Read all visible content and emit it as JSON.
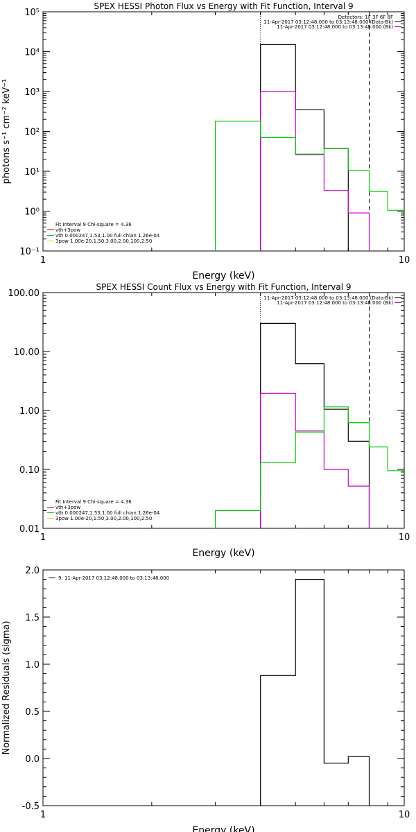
{
  "chart_data": [
    {
      "type": "line",
      "title": "SPEX HESSI Photon Flux vs Energy with Fit Function, Interval 9",
      "xlabel": "Energy (keV)",
      "ylabel": "photons s⁻¹ cm⁻² keV⁻¹",
      "xscale": "log",
      "yscale": "log",
      "xlim": [
        1,
        10
      ],
      "ylim": [
        0.1,
        100000
      ],
      "xticks": [
        {
          "v": 1,
          "label": "1"
        },
        {
          "v": 10,
          "label": "10"
        }
      ],
      "yticks": [
        {
          "v": 0.1,
          "label": "10⁻¹"
        },
        {
          "v": 1,
          "label": "10⁰"
        },
        {
          "v": 10,
          "label": "10¹"
        },
        {
          "v": 100,
          "label": "10²"
        },
        {
          "v": 1000,
          "label": "10³"
        },
        {
          "v": 10000,
          "label": "10⁴"
        },
        {
          "v": 100000,
          "label": "10⁵"
        }
      ],
      "vlines": [
        {
          "x": 4.0,
          "style": "dotted"
        },
        {
          "x": 8.0,
          "style": "dashed"
        }
      ],
      "legend_top_right": {
        "lines": [
          {
            "text": "Detectors: 1F 3F 6F 8F",
            "color": "#000000"
          },
          {
            "text": "11-Apr-2017 03:12:48.000 to 03:13:48.000 (Data-Bk)",
            "color": "#000000"
          },
          {
            "text": "11-Apr-2017 03:12:48.000 to 03:13:48.000 (Bk)",
            "color": "#cc00cc"
          }
        ]
      },
      "legend_bottom_left": {
        "lines": [
          {
            "text": "Fit Interval  9    Chi-square = 4.36",
            "color": "#000000"
          },
          {
            "text": "vth+3pow",
            "color": "#cc0000"
          },
          {
            "text": "vth 0.000247,1.53,1.00  full chian 1.26e-04",
            "color": "#00cc00"
          },
          {
            "text": "3pow 1.00e-20,1.50,3.00,2.00,100,2.50",
            "color": "#ffcc00"
          }
        ]
      },
      "series": [
        {
          "color": "#000000",
          "edges": [
            4,
            5,
            6,
            7
          ],
          "values": [
            15000,
            350,
            37
          ]
        },
        {
          "color": "#cc00cc",
          "edges": [
            4,
            5,
            6,
            7,
            8
          ],
          "values": [
            1000,
            26,
            3.3,
            0.9
          ]
        },
        {
          "color": "#00cc00",
          "edges": [
            3,
            4,
            5,
            6,
            7,
            8,
            9,
            10
          ],
          "values": [
            180,
            70,
            27,
            37,
            10.5,
            3.1,
            1.05
          ]
        }
      ]
    },
    {
      "type": "line",
      "title": "SPEX HESSI Count Flux vs Energy with Fit Function, Interval 9",
      "xlabel": "Energy (keV)",
      "ylabel": "",
      "xscale": "log",
      "yscale": "log",
      "xlim": [
        1,
        10
      ],
      "ylim": [
        0.01,
        100
      ],
      "xticks": [
        {
          "v": 1,
          "label": "1"
        },
        {
          "v": 10,
          "label": "10"
        }
      ],
      "yticks": [
        {
          "v": 0.01,
          "label": "0.01"
        },
        {
          "v": 0.1,
          "label": "0.10"
        },
        {
          "v": 1,
          "label": "1.00"
        },
        {
          "v": 10,
          "label": "10.00"
        },
        {
          "v": 100,
          "label": "100.00"
        }
      ],
      "vlines": [
        {
          "x": 4.0,
          "style": "dotted"
        },
        {
          "x": 8.0,
          "style": "dashed"
        }
      ],
      "legend_top_right": {
        "lines": [
          {
            "text": "11-Apr-2017 03:12:48.000 to 03:13:48.000 (Data-Bk)",
            "color": "#000000"
          },
          {
            "text": "11-Apr-2017 03:12:48.000 to 03:13:48.000 (Bk)",
            "color": "#cc00cc"
          }
        ]
      },
      "legend_bottom_left": {
        "lines": [
          {
            "text": "Fit Interval  9    Chi-square = 4.36",
            "color": "#000000"
          },
          {
            "text": "vth+3pow",
            "color": "#cc0000"
          },
          {
            "text": "vth 0.000247,1.53,1.00  full chian 1.26e-04",
            "color": "#00cc00"
          },
          {
            "text": "3pow 1.00e-20,1.50,3.00,2.00,100,2.50",
            "color": "#ffcc00"
          }
        ]
      },
      "series": [
        {
          "color": "#000000",
          "edges": [
            4,
            5,
            6,
            7,
            8
          ],
          "values": [
            30,
            6.2,
            1.05,
            0.3
          ]
        },
        {
          "color": "#cc00cc",
          "edges": [
            4,
            5,
            6,
            7,
            8
          ],
          "values": [
            1.95,
            0.45,
            0.1,
            0.052
          ]
        },
        {
          "color": "#00cc00",
          "edges": [
            3,
            4,
            5,
            6,
            7,
            8,
            9,
            10
          ],
          "values": [
            0.02,
            0.13,
            0.43,
            1.15,
            0.62,
            0.24,
            0.095
          ]
        }
      ]
    },
    {
      "type": "line",
      "title": "",
      "xlabel": "Energy (keV)",
      "ylabel": "Normalized Residuals (sigma)",
      "xscale": "log",
      "yscale": "linear",
      "xlim": [
        1,
        10
      ],
      "ylim": [
        -0.5,
        2.0
      ],
      "xticks": [
        {
          "v": 1,
          "label": "1"
        },
        {
          "v": 10,
          "label": "10"
        }
      ],
      "yticks": [
        {
          "v": -0.5,
          "label": "-0.5"
        },
        {
          "v": 0,
          "label": "0.0"
        },
        {
          "v": 0.5,
          "label": "0.5"
        },
        {
          "v": 1,
          "label": "1.0"
        },
        {
          "v": 1.5,
          "label": "1.5"
        },
        {
          "v": 2,
          "label": "2.0"
        }
      ],
      "vlines": [],
      "legend_top_left": {
        "lines": [
          {
            "text": "9: 11-Apr-2017 03:12:48.000 to 03:13:48.000",
            "color": "#000000"
          }
        ]
      },
      "series": [
        {
          "color": "#000000",
          "edges": [
            4,
            5,
            6,
            7,
            8
          ],
          "values": [
            0.88,
            1.9,
            -0.05,
            0.02
          ]
        }
      ]
    }
  ]
}
